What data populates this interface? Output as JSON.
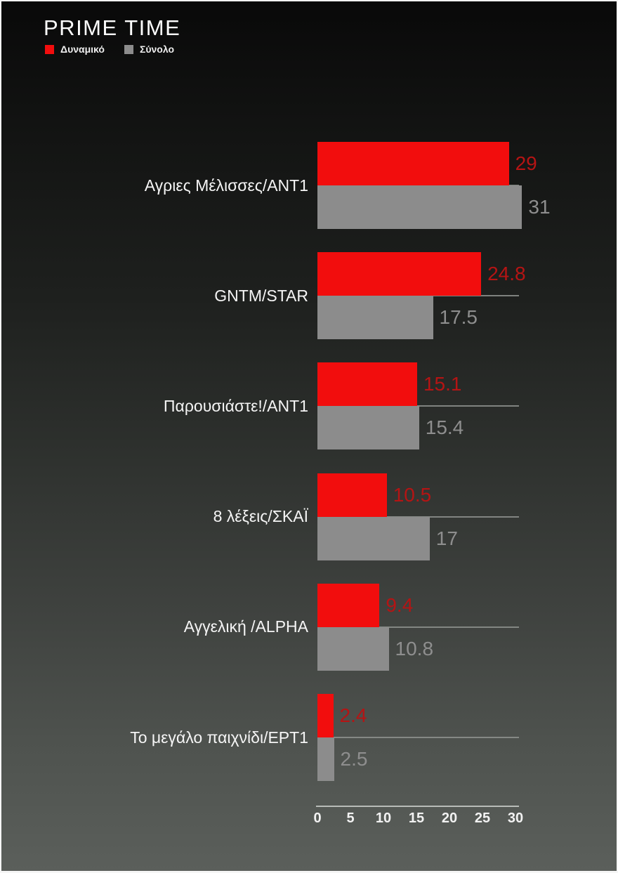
{
  "header": {
    "title": "PRIME TIME",
    "legend": [
      {
        "label": "Δυναμικό",
        "color": "#f20d0d"
      },
      {
        "label": "Σύνολο",
        "color": "#8c8c8c"
      }
    ]
  },
  "colors": {
    "dynamiko_bar": "#f20d0d",
    "synolo_bar": "#8c8c8c",
    "dynamiko_value_label": "#b51414",
    "synolo_value_label": "#8e8e8e"
  },
  "chart_data": {
    "type": "bar",
    "orientation": "horizontal",
    "title": "PRIME TIME",
    "categories": [
      "Αγριες Μέλισσες/ΑΝΤ1",
      "GNTM/STAR",
      "Παρουσιάστε!/ΑΝΤ1",
      "8 λέξεις/ΣΚΑΪ",
      "Αγγελική /ALPHA",
      "Το μεγάλο παιχνίδι/ΕΡΤ1"
    ],
    "series": [
      {
        "name": "Δυναμικό",
        "color": "#f20d0d",
        "label_color": "#b51414",
        "values": [
          29,
          24.8,
          15.1,
          10.5,
          9.4,
          2.4
        ],
        "value_labels": [
          "29",
          "24.8",
          "15.1",
          "10.5",
          "9.4",
          "2.4"
        ]
      },
      {
        "name": "Σύνολο",
        "color": "#8c8c8c",
        "label_color": "#8e8e8e",
        "values": [
          31,
          17.5,
          15.4,
          17,
          10.8,
          2.5
        ],
        "value_labels": [
          "31",
          "17.5",
          "15.4",
          "17",
          "10.8",
          "2.5"
        ]
      }
    ],
    "xlim": [
      0,
      30
    ],
    "xticks": [
      "0",
      "5",
      "10",
      "15",
      "20",
      "25",
      "30"
    ],
    "grid": "per-category horizontal baseline, bars overlap line",
    "legend_position": "top-left",
    "background": "vertical gradient black to gray-green"
  }
}
